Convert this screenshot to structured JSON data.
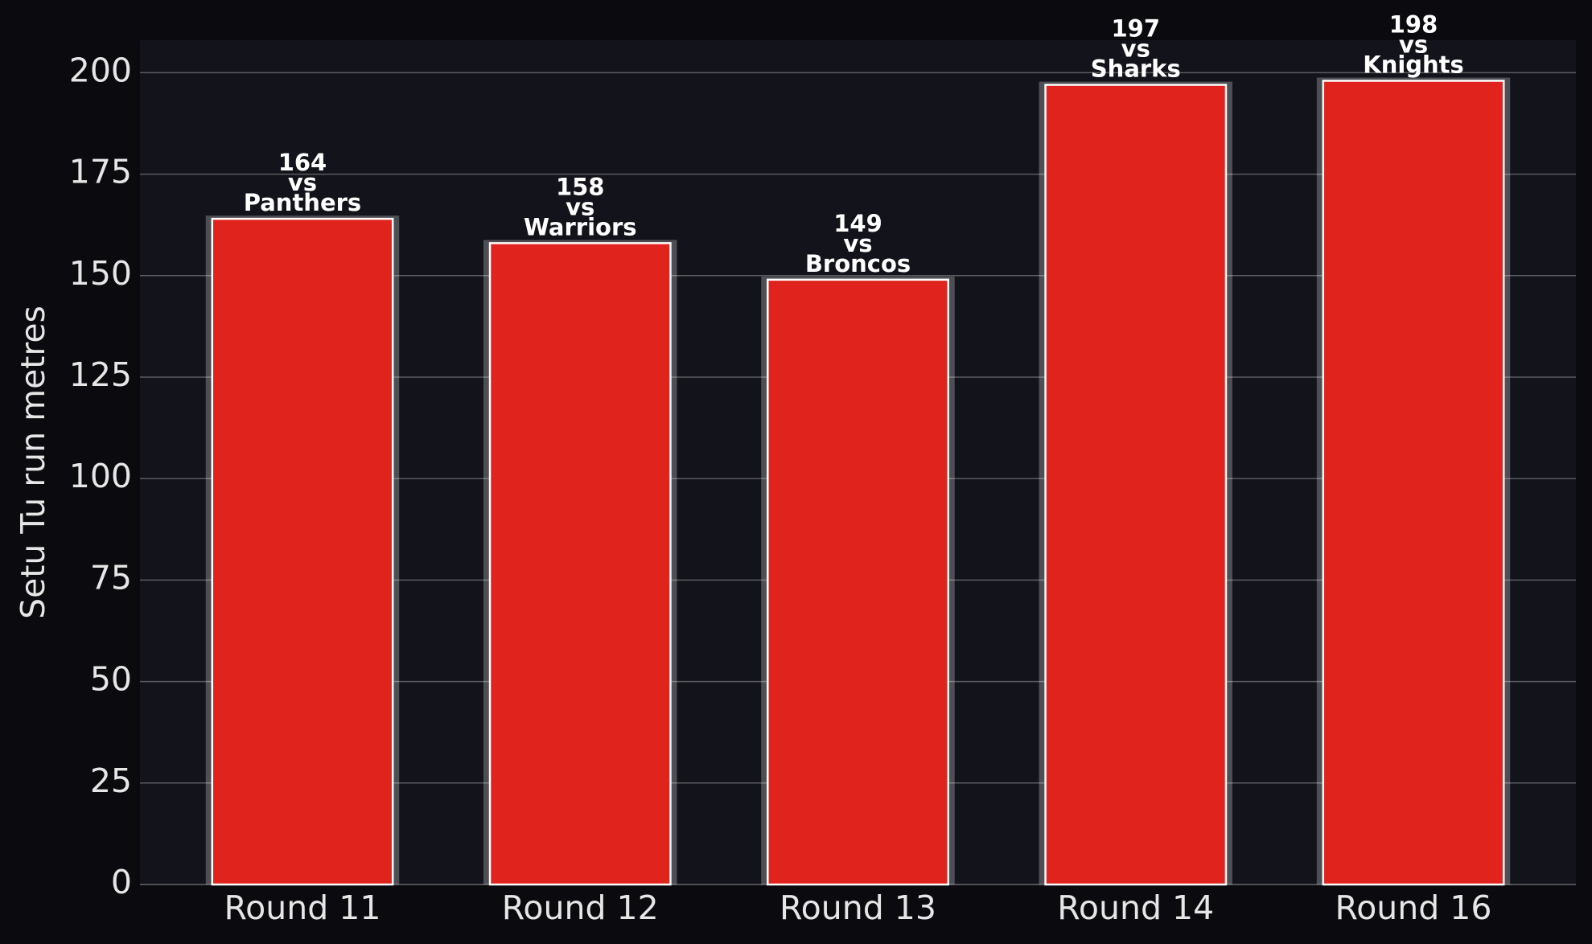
{
  "chart_data": {
    "type": "bar",
    "y_label": "Setu Tu run metres",
    "categories": [
      "Round 11",
      "Round 12",
      "Round 13",
      "Round 14",
      "Round 16"
    ],
    "values": [
      164,
      158,
      149,
      197,
      198
    ],
    "opponent_prefix": "vs",
    "opponents": [
      "Panthers",
      "Warriors",
      "Broncos",
      "Sharks",
      "Knights"
    ],
    "color": "#e0231c",
    "ylim": [
      0,
      208
    ],
    "yticks": [
      0,
      25,
      50,
      75,
      100,
      125,
      150,
      175,
      200
    ],
    "grid": true
  }
}
